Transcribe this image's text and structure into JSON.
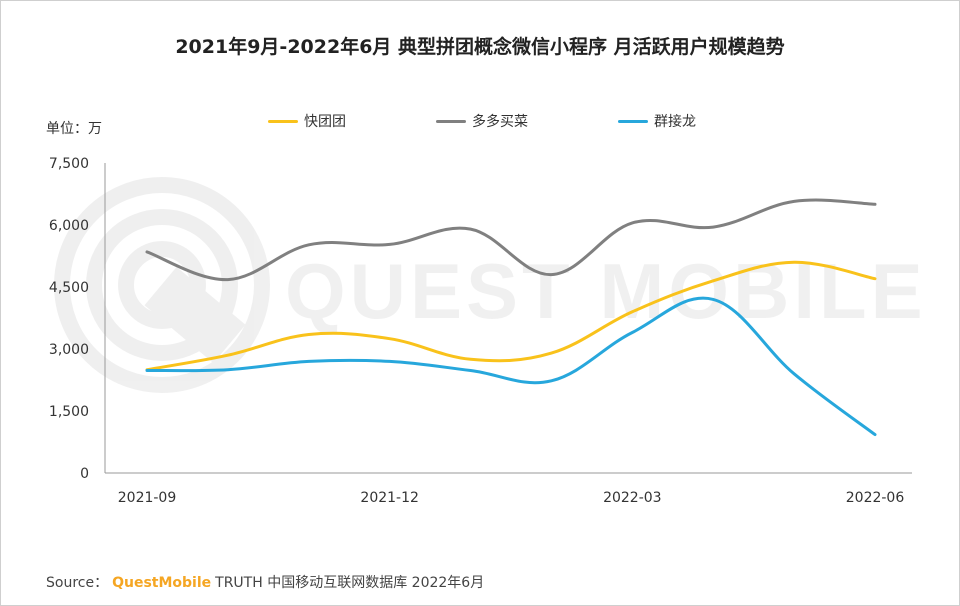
{
  "title": "2021年9月-2022年6月 典型拼团概念微信小程序 月活跃用户规模趋势",
  "unit_label": "单位：万",
  "footer": {
    "source_label": "Source：",
    "brand": "QuestMobile",
    "rest": "TRUTH 中国移动互联网数据库 2022年6月"
  },
  "watermark": "QUEST MOBILE",
  "colors": {
    "series_1": "#f9c21b",
    "series_2": "#808080",
    "series_3": "#27a7dc"
  },
  "chart_data": {
    "type": "line",
    "title": "2021年9月-2022年6月 典型拼团概念微信小程序 月活跃用户规模趋势",
    "ylabel": "单位：万",
    "xlabel": "",
    "x": [
      "2021-09",
      "2021-10",
      "2021-11",
      "2021-12",
      "2022-01",
      "2022-02",
      "2022-03",
      "2022-04",
      "2022-05",
      "2022-06"
    ],
    "x_tick_labels": [
      "2021-09",
      "2021-12",
      "2022-03",
      "2022-06"
    ],
    "ylim": [
      0,
      7500
    ],
    "y_ticks": [
      0,
      1500,
      3000,
      4500,
      6000,
      7500
    ],
    "y_tick_labels": [
      "0",
      "1,500",
      "3,000",
      "4,500",
      "6,000",
      "7,500"
    ],
    "grid": false,
    "legend_position": "top",
    "smooth": true,
    "series": [
      {
        "name": "快团团",
        "values": [
          2500,
          2850,
          3350,
          3250,
          2750,
          2900,
          3900,
          4650,
          5100,
          4700
        ]
      },
      {
        "name": "多多买菜",
        "values": [
          5350,
          4680,
          5520,
          5530,
          5900,
          4800,
          6050,
          5950,
          6570,
          6500
        ]
      },
      {
        "name": "群接龙",
        "values": [
          2480,
          2500,
          2700,
          2700,
          2480,
          2230,
          3400,
          4200,
          2400,
          930
        ]
      }
    ]
  }
}
